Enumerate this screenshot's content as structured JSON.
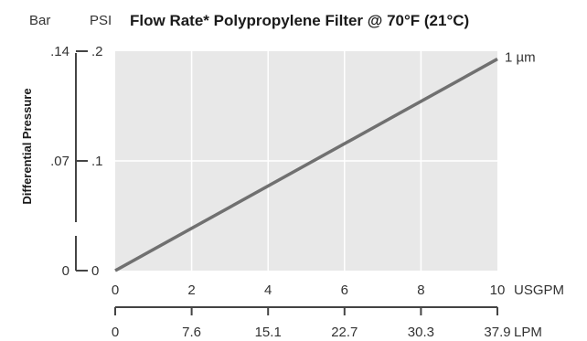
{
  "chart_data": {
    "type": "line",
    "title": "Flow Rate* Polypropylene Filter @ 70°F (21°C)",
    "ylabel": "Differential Pressure",
    "y_axes": [
      {
        "unit": "Bar",
        "ticks": [
          "0",
          ".07",
          ".14"
        ],
        "range": [
          0,
          0.14
        ]
      },
      {
        "unit": "PSI",
        "ticks": [
          "0",
          ".1",
          ".2"
        ],
        "range": [
          0,
          0.2
        ]
      }
    ],
    "x_axes": [
      {
        "unit": "USGPM",
        "ticks": [
          "0",
          "2",
          "4",
          "6",
          "8",
          "10"
        ],
        "range": [
          0,
          10
        ]
      },
      {
        "unit": "LPM",
        "ticks": [
          "0",
          "7.6",
          "15.1",
          "22.7",
          "30.3",
          "37.9"
        ],
        "range": [
          0,
          37.9
        ]
      }
    ],
    "grid": true,
    "series": [
      {
        "name": "1 µm",
        "x": [
          0,
          10
        ],
        "y": [
          0,
          0.135
        ],
        "color": "#707070"
      }
    ]
  }
}
